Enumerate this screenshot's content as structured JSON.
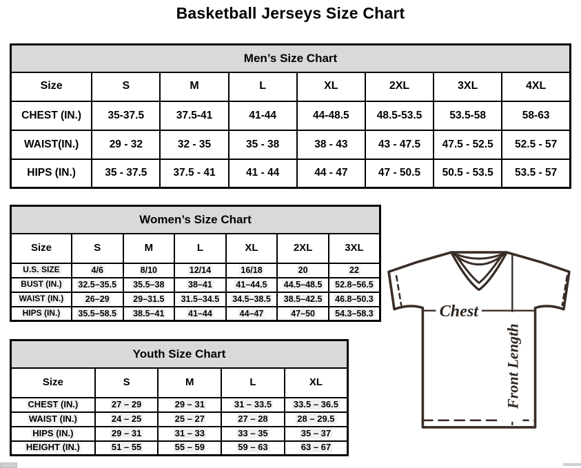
{
  "page_title": "Basketball Jerseys Size Chart",
  "tables": {
    "mens": {
      "title": "Men’s Size Chart",
      "size_label": "Size",
      "sizes": [
        "S",
        "M",
        "L",
        "XL",
        "2XL",
        "3XL",
        "4XL"
      ],
      "rows": [
        {
          "label": "CHEST (IN.)",
          "values": [
            "35-37.5",
            "37.5-41",
            "41-44",
            "44-48.5",
            "48.5-53.5",
            "53.5-58",
            "58-63"
          ]
        },
        {
          "label": "WAIST(IN.)",
          "values": [
            "29 - 32",
            "32 - 35",
            "35 - 38",
            "38 - 43",
            "43 - 47.5",
            "47.5 - 52.5",
            "52.5 - 57"
          ]
        },
        {
          "label": "HIPS (IN.)",
          "values": [
            "35 - 37.5",
            "37.5 - 41",
            "41 - 44",
            "44 - 47",
            "47 - 50.5",
            "50.5 - 53.5",
            "53.5 - 57"
          ]
        }
      ]
    },
    "womens": {
      "title": "Women’s Size Chart",
      "size_label": "Size",
      "sizes": [
        "S",
        "M",
        "L",
        "XL",
        "2XL",
        "3XL"
      ],
      "rows": [
        {
          "label": "U.S. SIZE",
          "values": [
            "4/6",
            "8/10",
            "12/14",
            "16/18",
            "20",
            "22"
          ]
        },
        {
          "label": "BUST (IN.)",
          "values": [
            "32.5–35.5",
            "35.5–38",
            "38–41",
            "41–44.5",
            "44.5–48.5",
            "52.8–56.5"
          ]
        },
        {
          "label": "WAIST (IN.)",
          "values": [
            "26–29",
            "29–31.5",
            "31.5–34.5",
            "34.5–38.5",
            "38.5–42.5",
            "46.8–50.3"
          ]
        },
        {
          "label": "HIPS (IN.)",
          "values": [
            "35.5–58.5",
            "38.5–41",
            "41–44",
            "44–47",
            "47–50",
            "54.3–58.3"
          ]
        }
      ]
    },
    "youth": {
      "title": "Youth Size Chart",
      "size_label": "Size",
      "sizes": [
        "S",
        "M",
        "L",
        "XL"
      ],
      "rows": [
        {
          "label": "CHEST (IN.)",
          "values": [
            "27 – 29",
            "29 – 31",
            "31 – 33.5",
            "33.5 – 36.5"
          ]
        },
        {
          "label": "WAIST (IN.)",
          "values": [
            "24 – 25",
            "25 – 27",
            "27 – 28",
            "28 – 29.5"
          ]
        },
        {
          "label": "HIPS (IN.)",
          "values": [
            "29 – 31",
            "31 – 33",
            "33 – 35",
            "35 – 37"
          ]
        },
        {
          "label": "HEIGHT (IN.)",
          "values": [
            "51 – 55",
            "55 – 59",
            "59 – 63",
            "63 – 67"
          ]
        }
      ]
    }
  },
  "diagram": {
    "chest_label": "Chest",
    "front_length_label": "Front Length"
  },
  "colors": {
    "header_bg": "#d9d9d9",
    "table_border": "#000000",
    "diagram_stroke": "#3a2d27"
  }
}
